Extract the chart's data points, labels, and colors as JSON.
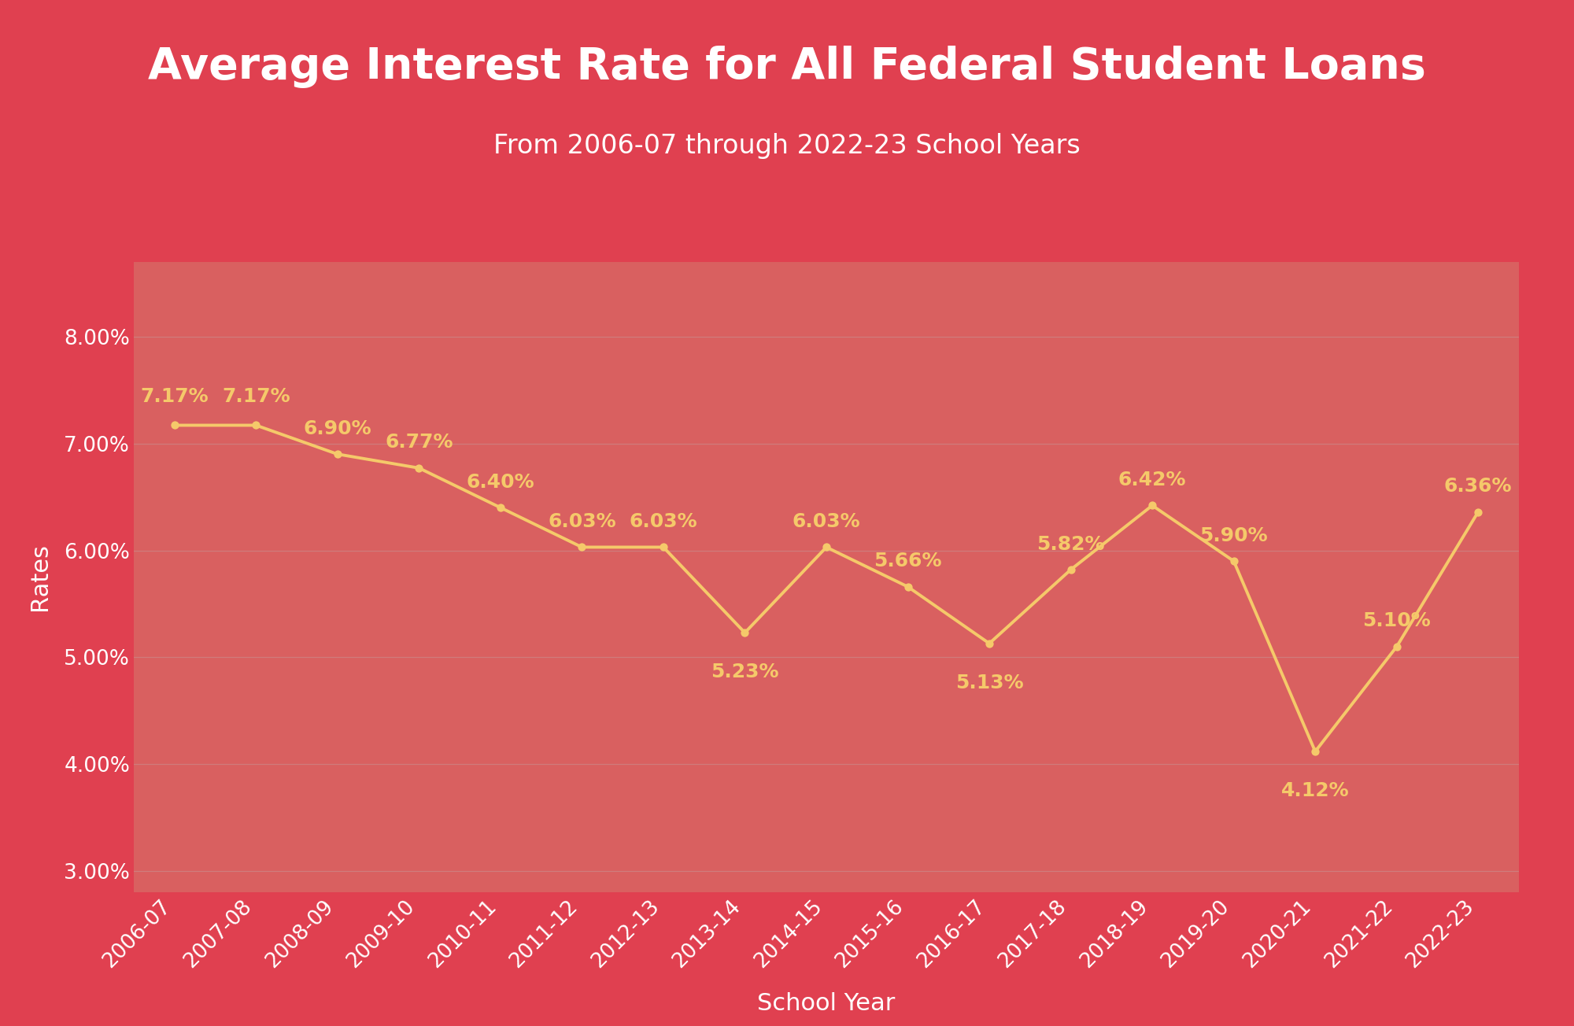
{
  "title": "Average Interest Rate for All Federal Student Loans",
  "subtitle": "From 2006-07 through 2022-23 School Years",
  "xlabel": "School Year",
  "ylabel": "Rates",
  "categories": [
    "2006-07",
    "2007-08",
    "2008-09",
    "2009-10",
    "2010-11",
    "2011-12",
    "2012-13",
    "2013-14",
    "2014-15",
    "2015-16",
    "2016-17",
    "2017-18",
    "2018-19",
    "2019-20",
    "2020-21",
    "2021-22",
    "2022-23"
  ],
  "values": [
    7.17,
    7.17,
    6.9,
    6.77,
    6.4,
    6.03,
    6.03,
    5.23,
    6.03,
    5.66,
    5.13,
    5.82,
    6.42,
    5.9,
    4.12,
    5.1,
    6.36
  ],
  "labels": [
    "7.17%",
    "7.17%",
    "6.90%",
    "6.77%",
    "6.40%",
    "6.03%",
    "6.03%",
    "5.23%",
    "6.03%",
    "5.66%",
    "5.13%",
    "5.82%",
    "6.42%",
    "5.90%",
    "4.12%",
    "5.10%",
    "6.36%"
  ],
  "line_color": "#F5C96A",
  "marker_color": "#F5C96A",
  "label_color": "#F5C96A",
  "background_color_header": "#E04050",
  "background_color_strip": "#8B0050",
  "background_color_body": "#D96060",
  "text_color_title": "#FFFFFF",
  "text_color_subtitle": "#FFFFFF",
  "text_color_axis": "#FFFFFF",
  "text_color_ticks": "#FFFFFF",
  "grid_color": "#CC8888",
  "ylim_min": 2.8,
  "ylim_max": 8.7,
  "yticks": [
    3.0,
    4.0,
    5.0,
    6.0,
    7.0,
    8.0
  ],
  "title_fontsize": 40,
  "subtitle_fontsize": 24,
  "axis_label_fontsize": 22,
  "tick_fontsize": 19,
  "data_label_fontsize": 18,
  "label_offsets": [
    0.18,
    0.18,
    0.15,
    0.15,
    0.15,
    0.15,
    0.15,
    -0.28,
    0.15,
    0.15,
    -0.28,
    0.15,
    0.15,
    0.15,
    -0.28,
    0.15,
    0.15
  ]
}
